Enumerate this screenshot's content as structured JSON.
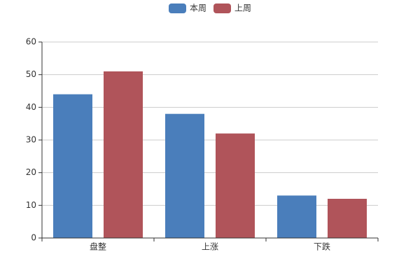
{
  "chart_data": {
    "type": "bar",
    "categories": [
      "盘整",
      "上涨",
      "下跌"
    ],
    "series": [
      {
        "name": "本周",
        "color": "#4a7ebb",
        "values": [
          44,
          38,
          13
        ]
      },
      {
        "name": "上周",
        "color": "#b0545a",
        "values": [
          51,
          32,
          12
        ]
      }
    ],
    "ylim": [
      0,
      60
    ],
    "yticks": [
      0,
      10,
      20,
      30,
      40,
      50,
      60
    ],
    "grid": true,
    "legend": "top"
  }
}
